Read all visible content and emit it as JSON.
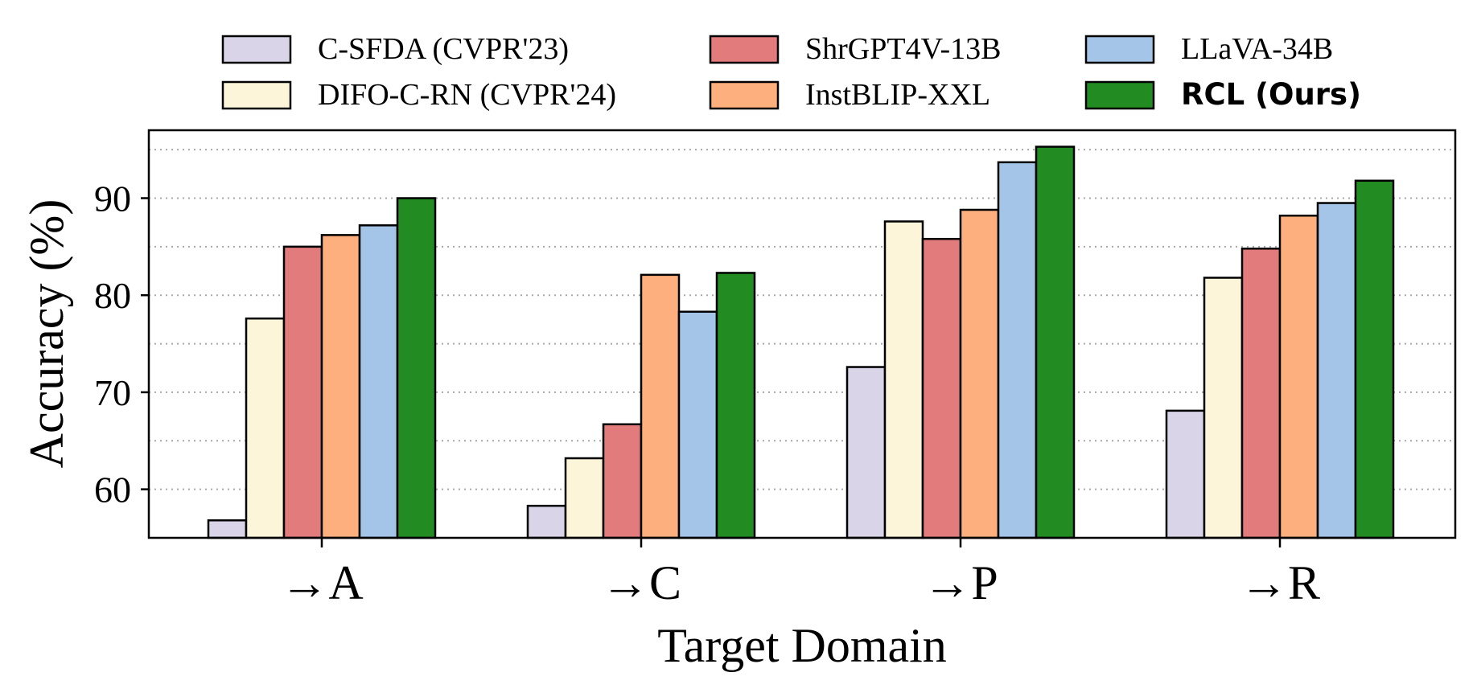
{
  "chart_data": {
    "type": "bar",
    "title": "",
    "xlabel": "Target Domain",
    "ylabel": "Accuracy (%)",
    "categories": [
      "→A",
      "→C",
      "→P",
      "→R"
    ],
    "ylim": [
      55,
      97
    ],
    "yticks": [
      60,
      70,
      80,
      90
    ],
    "ytick_labels": [
      "60",
      "70",
      "80",
      "90"
    ],
    "grid": "horizontal dotted every 5",
    "legend_position": "top, outside plot, 3 columns",
    "series": [
      {
        "name": "C-SFDA (CVPR'23)",
        "color": "#d9d4e7",
        "bold": false,
        "values": [
          56.8,
          58.3,
          72.6,
          68.1
        ]
      },
      {
        "name": "DIFO-C-RN (CVPR'24)",
        "color": "#fcf5d9",
        "bold": false,
        "values": [
          77.6,
          63.2,
          87.6,
          81.8
        ]
      },
      {
        "name": "ShrGPT4V-13B",
        "color": "#e27b7b",
        "bold": false,
        "values": [
          85.0,
          66.7,
          85.8,
          84.8
        ]
      },
      {
        "name": "InstBLIP-XXL",
        "color": "#fdb07d",
        "bold": false,
        "values": [
          86.2,
          82.1,
          88.8,
          88.2
        ]
      },
      {
        "name": "LLaVA-34B",
        "color": "#a4c5e8",
        "bold": false,
        "values": [
          87.2,
          78.3,
          93.7,
          89.5
        ]
      },
      {
        "name": "RCL (Ours)",
        "color": "#228b22",
        "bold": true,
        "values": [
          90.0,
          82.3,
          95.3,
          91.8
        ]
      }
    ]
  }
}
